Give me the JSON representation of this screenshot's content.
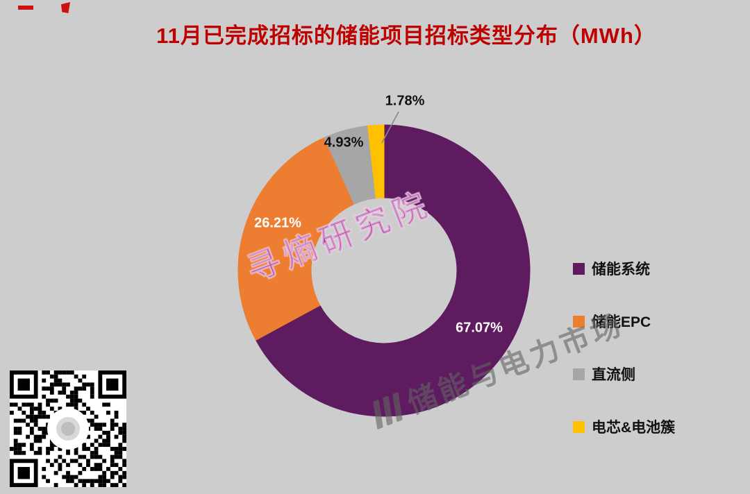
{
  "title": "11月已完成招标的储能项目招标类型分布（MWh）",
  "theme": {
    "background": "#cdcdcd",
    "title_color": "#bf0000"
  },
  "chart_data": {
    "type": "pie",
    "donut": true,
    "title": "11月已完成招标的储能项目招标类型分布（MWh）",
    "categories": [
      "储能系统",
      "储能EPC",
      "直流侧",
      "电芯&电池簇"
    ],
    "values": [
      67.07,
      26.21,
      4.93,
      1.78
    ],
    "labels": [
      "67.07%",
      "26.21%",
      "4.93%",
      "1.78%"
    ],
    "colors": [
      "#5E1B60",
      "#ED7D31",
      "#A6A6A6",
      "#FFC000"
    ],
    "legend_position": "right",
    "start_angle_deg": 0,
    "direction": "clockwise"
  },
  "legend": {
    "items": [
      {
        "label": "储能系统",
        "color": "#5E1B60"
      },
      {
        "label": "储能EPC",
        "color": "#ED7D31"
      },
      {
        "label": "直流侧",
        "color": "#A6A6A6"
      },
      {
        "label": "电芯&电池簇",
        "color": "#FFC000"
      }
    ]
  },
  "watermarks": {
    "primary": "寻熵研究院",
    "secondary": "储能与电力市场"
  }
}
